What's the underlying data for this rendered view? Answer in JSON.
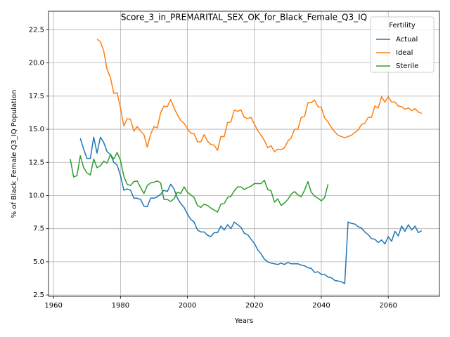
{
  "chart_data": {
    "type": "line",
    "title": "Score_3_in_PREMARITAL_SEX_OK_for_Black_Female_Q3_IQ",
    "x_label": "Years",
    "y_label": "% of Black_Female Q3_IQ Population",
    "x": [
      1965,
      1966,
      1967,
      1968,
      1969,
      1970,
      1971,
      1972,
      1973,
      1974,
      1975,
      1976,
      1977,
      1978,
      1979,
      1980,
      1981,
      1982,
      1983,
      1984,
      1985,
      1986,
      1987,
      1988,
      1989,
      1990,
      1991,
      1992,
      1993,
      1994,
      1995,
      1996,
      1997,
      1998,
      1999,
      2000,
      2001,
      2002,
      2003,
      2004,
      2005,
      2006,
      2007,
      2008,
      2009,
      2010,
      2011,
      2012,
      2013,
      2014,
      2015,
      2016,
      2017,
      2018,
      2019,
      2020,
      2021,
      2022,
      2023,
      2024,
      2025,
      2026,
      2027,
      2028,
      2029,
      2030,
      2031,
      2032,
      2033,
      2034,
      2035,
      2036,
      2037,
      2038,
      2039,
      2040,
      2041,
      2042,
      2043,
      2044,
      2045,
      2046,
      2047,
      2048,
      2049,
      2050,
      2051,
      2052,
      2053,
      2054,
      2055,
      2056,
      2057,
      2058,
      2059,
      2060,
      2061,
      2062,
      2063,
      2064,
      2065,
      2066,
      2067,
      2068,
      2069,
      2070
    ],
    "series": [
      {
        "name": "Actual",
        "color": "#1f77b4",
        "values": [
          null,
          null,
          null,
          14.3,
          13.5,
          12.8,
          12.8,
          14.4,
          13.2,
          14.4,
          14.0,
          13.3,
          13.1,
          12.5,
          12.3,
          11.5,
          10.4,
          10.5,
          10.4,
          9.8,
          9.8,
          9.7,
          9.2,
          9.15,
          9.8,
          9.8,
          9.9,
          10.1,
          10.4,
          10.3,
          10.85,
          10.5,
          9.8,
          9.4,
          9.1,
          8.6,
          8.2,
          8.0,
          7.4,
          7.25,
          7.25,
          7.0,
          6.9,
          7.2,
          7.2,
          7.7,
          7.4,
          7.8,
          7.5,
          8.0,
          7.8,
          7.6,
          7.15,
          7.05,
          6.7,
          6.4,
          5.9,
          5.6,
          5.2,
          5.0,
          4.9,
          4.85,
          4.8,
          4.9,
          4.8,
          4.95,
          4.85,
          4.85,
          4.85,
          4.75,
          4.7,
          4.55,
          4.5,
          4.2,
          4.25,
          4.05,
          4.05,
          3.85,
          3.8,
          3.6,
          3.55,
          3.5,
          3.35,
          8.0,
          7.9,
          7.85,
          7.65,
          7.55,
          7.25,
          7.05,
          6.75,
          6.7,
          6.45,
          6.65,
          6.35,
          6.9,
          6.55,
          7.3,
          6.95,
          7.7,
          7.3,
          7.8,
          7.4,
          7.7,
          7.2,
          7.35
        ]
      },
      {
        "name": "Ideal",
        "color": "#ff7f0e",
        "values": [
          null,
          null,
          null,
          null,
          null,
          null,
          null,
          null,
          21.8,
          21.6,
          20.9,
          19.5,
          18.9,
          17.7,
          17.75,
          16.6,
          15.25,
          15.8,
          15.75,
          14.85,
          15.2,
          14.85,
          14.6,
          13.65,
          14.6,
          15.2,
          15.1,
          16.25,
          16.75,
          16.7,
          17.25,
          16.6,
          16.1,
          15.65,
          15.45,
          15.05,
          14.7,
          14.65,
          14.05,
          14.05,
          14.6,
          14.1,
          13.85,
          13.8,
          13.4,
          14.45,
          14.45,
          15.5,
          15.55,
          16.45,
          16.35,
          16.45,
          15.9,
          15.8,
          15.9,
          15.4,
          14.9,
          14.55,
          14.15,
          13.6,
          13.75,
          13.3,
          13.5,
          13.45,
          13.6,
          14.1,
          14.35,
          15.0,
          15.0,
          15.9,
          15.95,
          17.0,
          17.0,
          17.2,
          16.7,
          16.65,
          15.85,
          15.55,
          15.15,
          14.8,
          14.55,
          14.45,
          14.35,
          14.45,
          14.55,
          14.75,
          14.95,
          15.35,
          15.45,
          15.9,
          15.9,
          16.75,
          16.6,
          17.45,
          17.05,
          17.45,
          17.05,
          17.05,
          16.75,
          16.7,
          16.5,
          16.6,
          16.4,
          16.55,
          16.3,
          16.2
        ]
      },
      {
        "name": "Sterile",
        "color": "#2ca02c",
        "values": [
          12.75,
          11.4,
          11.5,
          13.0,
          12.1,
          11.7,
          11.55,
          12.75,
          12.1,
          12.25,
          12.6,
          12.45,
          13.1,
          12.75,
          13.25,
          12.65,
          11.45,
          10.85,
          10.75,
          11.05,
          11.1,
          10.6,
          10.15,
          10.75,
          10.95,
          11.0,
          11.1,
          10.95,
          9.7,
          9.7,
          9.55,
          9.75,
          10.25,
          10.15,
          10.65,
          10.25,
          10.05,
          9.85,
          9.25,
          9.1,
          9.35,
          9.25,
          9.05,
          8.9,
          8.75,
          9.35,
          9.4,
          9.85,
          9.95,
          10.35,
          10.65,
          10.65,
          10.45,
          10.6,
          10.7,
          10.9,
          10.9,
          10.9,
          11.15,
          10.45,
          10.35,
          9.5,
          9.75,
          9.25,
          9.45,
          9.7,
          10.1,
          10.3,
          10.05,
          9.9,
          10.4,
          11.05,
          10.25,
          9.95,
          9.8,
          9.6,
          9.85,
          10.85,
          null,
          null,
          null,
          null,
          null,
          null,
          null,
          null,
          null,
          null,
          null,
          null,
          null,
          null,
          null,
          null,
          null,
          null,
          null,
          null,
          null,
          null,
          null,
          null,
          null,
          null,
          null,
          null
        ]
      }
    ],
    "xlim": [
      1958.5,
      2075.3
    ],
    "ylim": [
      2.4,
      23.9
    ],
    "xticks": [
      1960,
      1980,
      2000,
      2020,
      2040,
      2060
    ],
    "yticks": [
      2.5,
      {
        "value": 5,
        "label": "5.0"
      },
      7.5,
      {
        "value": 10,
        "label": "10.0"
      },
      12.5,
      {
        "value": 15,
        "label": "15.0"
      },
      17.5,
      {
        "value": 20,
        "label": "20.0"
      },
      22.5
    ],
    "grid": true,
    "legend_title": "Fertility",
    "legend_position": "upper-right"
  }
}
